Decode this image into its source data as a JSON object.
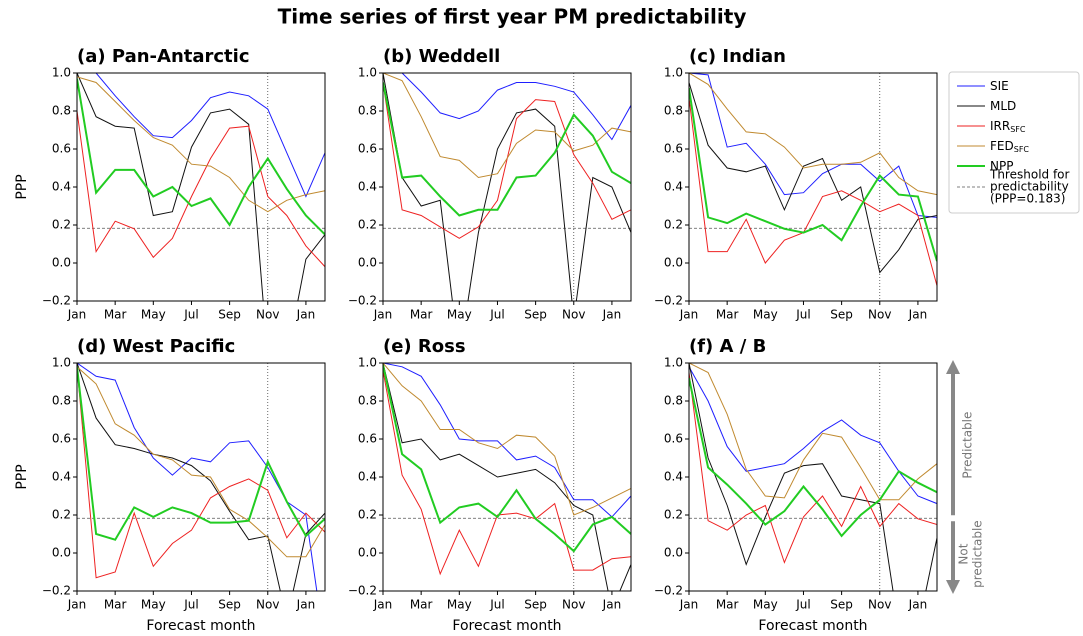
{
  "title": "Time series of first year PM predictability",
  "threshold": 0.183,
  "vline_x": 10,
  "legend": {
    "entries": [
      {
        "name": "SIE",
        "color": "#1f1fff"
      },
      {
        "name": "MLD",
        "color": "#111111"
      },
      {
        "name": "IRR",
        "sub": "SFC",
        "color": "#ee2222"
      },
      {
        "name": "FED",
        "sub": "SFC",
        "color": "#c08a30"
      },
      {
        "name": "NPP",
        "color": "#22cc22"
      }
    ],
    "threshold_label": [
      "Threshold for",
      "predictability",
      "(PPP=0.183)"
    ]
  },
  "annotation": {
    "above": "Predictable",
    "below": [
      "Not",
      "predictable"
    ]
  },
  "chart_data": [
    {
      "type": "line",
      "title": "(a) Pan-Antarctic",
      "ylabel": "PPP",
      "categories": [
        "Jan",
        null,
        "Mar",
        null,
        "May",
        null,
        "Jul",
        null,
        "Sep",
        null,
        "Nov",
        null,
        "Jan",
        null
      ],
      "ylim": [
        -0.2,
        1.0
      ],
      "yticks": [
        {
          "value": -0.2,
          "label": "−0.2"
        },
        {
          "value": 0,
          "label": "0.0"
        },
        {
          "value": 0.2,
          "label": "0.2"
        },
        {
          "value": 0.4,
          "label": "0.4"
        },
        {
          "value": 0.6,
          "label": "0.6"
        },
        {
          "value": 0.8,
          "label": "0.8"
        },
        {
          "value": 1.0,
          "label": "1.0"
        }
      ],
      "series": [
        {
          "values": [
            1.0,
            1.0,
            0.88,
            0.77,
            0.67,
            0.66,
            0.75,
            0.87,
            0.9,
            0.88,
            0.81,
            0.58,
            0.35,
            0.58
          ]
        },
        {
          "values": [
            1.0,
            0.77,
            0.72,
            0.71,
            0.25,
            0.27,
            0.61,
            0.79,
            0.81,
            0.73,
            -0.5,
            -0.5,
            0.02,
            0.15
          ]
        },
        {
          "values": [
            0.8,
            0.06,
            0.22,
            0.18,
            0.03,
            0.13,
            0.35,
            0.55,
            0.71,
            0.72,
            0.35,
            0.25,
            0.09,
            -0.02
          ]
        },
        {
          "values": [
            0.98,
            0.95,
            0.85,
            0.75,
            0.66,
            0.62,
            0.52,
            0.51,
            0.45,
            0.33,
            0.27,
            0.33,
            0.36,
            0.38
          ]
        },
        {
          "values": [
            0.97,
            0.37,
            0.49,
            0.49,
            0.35,
            0.4,
            0.3,
            0.34,
            0.2,
            0.4,
            0.55,
            0.39,
            0.25,
            0.15
          ]
        }
      ]
    },
    {
      "type": "line",
      "title": "(b) Weddell",
      "categories": [
        "Jan",
        null,
        "Mar",
        null,
        "May",
        null,
        "Jul",
        null,
        "Sep",
        null,
        "Nov",
        null,
        "Jan",
        null
      ],
      "ylim": [
        -0.2,
        1.0
      ],
      "yticks": [
        {
          "value": -0.2,
          "label": "−0.2"
        },
        {
          "value": 0,
          "label": "0.0"
        },
        {
          "value": 0.2,
          "label": "0.2"
        },
        {
          "value": 0.4,
          "label": "0.4"
        },
        {
          "value": 0.6,
          "label": "0.6"
        },
        {
          "value": 0.8,
          "label": "0.8"
        },
        {
          "value": 1.0,
          "label": "1.0"
        }
      ],
      "series": [
        {
          "values": [
            1.0,
            1.0,
            0.9,
            0.79,
            0.76,
            0.8,
            0.91,
            0.95,
            0.95,
            0.93,
            0.9,
            0.78,
            0.65,
            0.83
          ]
        },
        {
          "values": [
            1.0,
            0.45,
            0.3,
            0.33,
            -0.5,
            0.16,
            0.6,
            0.79,
            0.81,
            0.72,
            -0.3,
            0.45,
            0.4,
            0.16
          ]
        },
        {
          "values": [
            0.95,
            0.28,
            0.25,
            0.19,
            0.13,
            0.19,
            0.33,
            0.76,
            0.86,
            0.85,
            0.57,
            0.42,
            0.23,
            0.28
          ]
        },
        {
          "values": [
            1.0,
            0.96,
            0.77,
            0.56,
            0.54,
            0.45,
            0.47,
            0.63,
            0.7,
            0.69,
            0.59,
            0.62,
            0.71,
            0.69
          ]
        },
        {
          "values": [
            0.95,
            0.45,
            0.46,
            0.35,
            0.25,
            0.28,
            0.28,
            0.45,
            0.46,
            0.58,
            0.78,
            0.67,
            0.48,
            0.42
          ]
        }
      ]
    },
    {
      "type": "line",
      "title": "(c) Indian",
      "categories": [
        "Jan",
        null,
        "Mar",
        null,
        "May",
        null,
        "Jul",
        null,
        "Sep",
        null,
        "Nov",
        null,
        "Jan",
        null
      ],
      "ylim": [
        -0.2,
        1.0
      ],
      "yticks": [
        {
          "value": -0.2,
          "label": "−0.2"
        },
        {
          "value": 0,
          "label": "0.0"
        },
        {
          "value": 0.2,
          "label": "0.2"
        },
        {
          "value": 0.4,
          "label": "0.4"
        },
        {
          "value": 0.6,
          "label": "0.6"
        },
        {
          "value": 0.8,
          "label": "0.8"
        },
        {
          "value": 1.0,
          "label": "1.0"
        }
      ],
      "series": [
        {
          "values": [
            1.0,
            0.99,
            0.61,
            0.63,
            0.52,
            0.36,
            0.37,
            0.47,
            0.52,
            0.52,
            0.43,
            0.51,
            0.25,
            0.24
          ]
        },
        {
          "values": [
            0.95,
            0.62,
            0.5,
            0.48,
            0.51,
            0.28,
            0.51,
            0.55,
            0.33,
            0.4,
            -0.05,
            0.07,
            0.23,
            0.25
          ]
        },
        {
          "values": [
            0.87,
            0.06,
            0.06,
            0.23,
            0.0,
            0.12,
            0.16,
            0.35,
            0.38,
            0.33,
            0.27,
            0.31,
            0.25,
            -0.12
          ]
        },
        {
          "values": [
            1.0,
            0.94,
            0.81,
            0.69,
            0.68,
            0.61,
            0.5,
            0.52,
            0.52,
            0.53,
            0.58,
            0.45,
            0.38,
            0.36
          ]
        },
        {
          "values": [
            0.92,
            0.24,
            0.21,
            0.26,
            0.22,
            0.18,
            0.16,
            0.2,
            0.12,
            0.3,
            0.46,
            0.36,
            0.35,
            0.01
          ]
        }
      ]
    },
    {
      "type": "line",
      "title": "(d) West Pacific",
      "ylabel": "PPP",
      "xlabel": "Forecast month",
      "categories": [
        "Jan",
        null,
        "Mar",
        null,
        "May",
        null,
        "Jul",
        null,
        "Sep",
        null,
        "Nov",
        null,
        "Jan",
        null
      ],
      "ylim": [
        -0.2,
        1.0
      ],
      "yticks": [
        {
          "value": -0.2,
          "label": "−0.2"
        },
        {
          "value": 0,
          "label": "0.0"
        },
        {
          "value": 0.2,
          "label": "0.2"
        },
        {
          "value": 0.4,
          "label": "0.4"
        },
        {
          "value": 0.6,
          "label": "0.6"
        },
        {
          "value": 0.8,
          "label": "0.8"
        },
        {
          "value": 1.0,
          "label": "1.0"
        }
      ],
      "series": [
        {
          "values": [
            1.0,
            0.93,
            0.91,
            0.66,
            0.5,
            0.41,
            0.5,
            0.48,
            0.58,
            0.59,
            0.45,
            0.27,
            0.2,
            -0.5
          ]
        },
        {
          "values": [
            1.0,
            0.71,
            0.57,
            0.55,
            0.52,
            0.5,
            0.46,
            0.38,
            0.22,
            0.07,
            0.09,
            -0.35,
            0.1,
            0.21
          ]
        },
        {
          "values": [
            0.98,
            -0.13,
            -0.1,
            0.21,
            -0.07,
            0.05,
            0.12,
            0.29,
            0.35,
            0.39,
            0.33,
            0.08,
            0.21,
            0.11
          ]
        },
        {
          "values": [
            0.98,
            0.89,
            0.68,
            0.62,
            0.52,
            0.49,
            0.41,
            0.4,
            0.23,
            0.17,
            0.08,
            -0.02,
            -0.02,
            0.15
          ]
        },
        {
          "values": [
            0.98,
            0.1,
            0.07,
            0.24,
            0.19,
            0.24,
            0.21,
            0.16,
            0.16,
            0.17,
            0.48,
            0.27,
            0.09,
            0.18
          ]
        }
      ]
    },
    {
      "type": "line",
      "title": "(e) Ross",
      "xlabel": "Forecast month",
      "categories": [
        "Jan",
        null,
        "Mar",
        null,
        "May",
        null,
        "Jul",
        null,
        "Sep",
        null,
        "Nov",
        null,
        "Jan",
        null
      ],
      "ylim": [
        -0.2,
        1.0
      ],
      "yticks": [
        {
          "value": -0.2,
          "label": "−0.2"
        },
        {
          "value": 0,
          "label": "0.0"
        },
        {
          "value": 0.2,
          "label": "0.2"
        },
        {
          "value": 0.4,
          "label": "0.4"
        },
        {
          "value": 0.6,
          "label": "0.6"
        },
        {
          "value": 0.8,
          "label": "0.8"
        },
        {
          "value": 1.0,
          "label": "1.0"
        }
      ],
      "series": [
        {
          "values": [
            1.0,
            0.98,
            0.93,
            0.78,
            0.6,
            0.59,
            0.59,
            0.49,
            0.51,
            0.45,
            0.28,
            0.28,
            0.19,
            0.3
          ]
        },
        {
          "values": [
            1.0,
            0.58,
            0.6,
            0.49,
            0.52,
            0.46,
            0.4,
            0.42,
            0.44,
            0.37,
            0.25,
            0.2,
            -0.3,
            -0.06
          ]
        },
        {
          "values": [
            0.96,
            0.41,
            0.23,
            -0.11,
            0.12,
            -0.07,
            0.2,
            0.21,
            0.18,
            0.26,
            -0.09,
            -0.09,
            -0.03,
            -0.02
          ]
        },
        {
          "values": [
            1.0,
            0.88,
            0.8,
            0.65,
            0.65,
            0.58,
            0.55,
            0.62,
            0.61,
            0.51,
            0.2,
            0.24,
            0.29,
            0.34
          ]
        },
        {
          "values": [
            0.99,
            0.52,
            0.44,
            0.16,
            0.24,
            0.26,
            0.19,
            0.33,
            0.18,
            0.1,
            0.01,
            0.15,
            0.19,
            0.1
          ]
        }
      ]
    },
    {
      "type": "line",
      "title": "(f) A / B",
      "xlabel": "Forecast month",
      "categories": [
        "Jan",
        null,
        "Mar",
        null,
        "May",
        null,
        "Jul",
        null,
        "Sep",
        null,
        "Nov",
        null,
        "Jan",
        null
      ],
      "ylim": [
        -0.2,
        1.0
      ],
      "yticks": [
        {
          "value": -0.2,
          "label": "−0.2"
        },
        {
          "value": 0,
          "label": "0.0"
        },
        {
          "value": 0.2,
          "label": "0.2"
        },
        {
          "value": 0.4,
          "label": "0.4"
        },
        {
          "value": 0.6,
          "label": "0.6"
        },
        {
          "value": 0.8,
          "label": "0.8"
        },
        {
          "value": 1.0,
          "label": "1.0"
        }
      ],
      "series": [
        {
          "values": [
            0.98,
            0.8,
            0.56,
            0.43,
            0.45,
            0.47,
            0.55,
            0.64,
            0.7,
            0.62,
            0.58,
            0.43,
            0.3,
            0.26
          ]
        },
        {
          "values": [
            1.0,
            0.5,
            0.25,
            -0.06,
            0.19,
            0.42,
            0.46,
            0.47,
            0.3,
            0.28,
            0.26,
            -0.4,
            -0.4,
            0.08
          ]
        },
        {
          "values": [
            0.95,
            0.17,
            0.12,
            0.2,
            0.25,
            -0.05,
            0.19,
            0.3,
            0.14,
            0.35,
            0.14,
            0.26,
            0.18,
            0.15
          ]
        },
        {
          "values": [
            1.0,
            0.95,
            0.73,
            0.44,
            0.3,
            0.29,
            0.49,
            0.63,
            0.61,
            0.45,
            0.28,
            0.28,
            0.39,
            0.47
          ]
        },
        {
          "values": [
            0.92,
            0.45,
            0.36,
            0.26,
            0.15,
            0.22,
            0.35,
            0.23,
            0.09,
            0.2,
            0.28,
            0.43,
            0.37,
            0.32
          ]
        }
      ]
    }
  ]
}
